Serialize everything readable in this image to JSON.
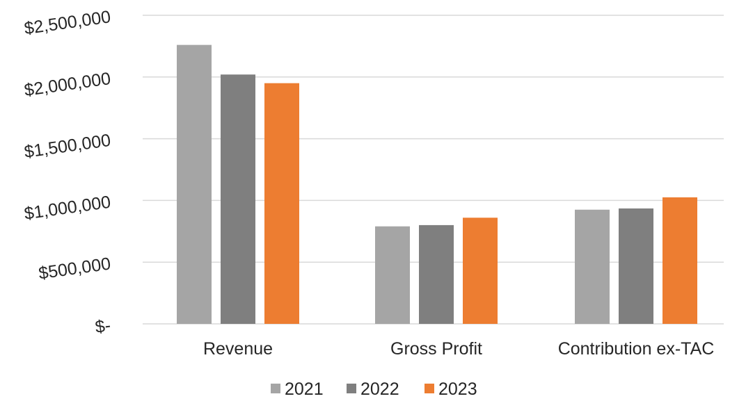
{
  "chart_data": {
    "type": "bar",
    "categories": [
      "Revenue",
      "Gross Profit",
      "Contribution ex-TAC"
    ],
    "series": [
      {
        "name": "2021",
        "color": "#a5a5a5",
        "values": [
          2260000,
          790000,
          925000
        ]
      },
      {
        "name": "2022",
        "color": "#7f7f7f",
        "values": [
          2020000,
          800000,
          935000
        ]
      },
      {
        "name": "2023",
        "color": "#ed7d31",
        "values": [
          1950000,
          860000,
          1025000
        ]
      }
    ],
    "y_ticks": [
      {
        "value": 0,
        "label": "$-"
      },
      {
        "value": 500000,
        "label": "$500,000"
      },
      {
        "value": 1000000,
        "label": "$1,000,000"
      },
      {
        "value": 1500000,
        "label": "$1,500,000"
      },
      {
        "value": 2000000,
        "label": "$2,000,000"
      },
      {
        "value": 2500000,
        "label": "$2,500,000"
      }
    ],
    "ylim": [
      0,
      2500000
    ],
    "grid": true,
    "gridline_color": "#d9d9d9",
    "legend_position": "bottom",
    "title": "",
    "xlabel": "",
    "ylabel": ""
  }
}
